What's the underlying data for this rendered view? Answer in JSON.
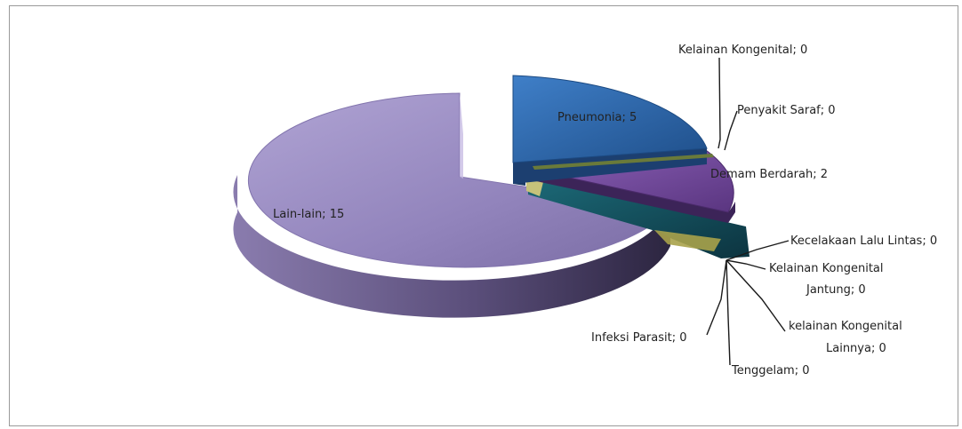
{
  "chart_data": {
    "type": "pie",
    "style": "3d-exploded",
    "title": "",
    "legend": "none",
    "labels_format": "{category}; {value}",
    "slices": [
      {
        "category": "Pneumonia",
        "value": 5,
        "color": "#2f6db3"
      },
      {
        "category": "Kelainan Kongenital",
        "value": 0,
        "color": "#4a7a2e"
      },
      {
        "category": "Penyakit Saraf",
        "value": 0,
        "color": "#8b6a2e"
      },
      {
        "category": "Demam Berdarah",
        "value": 2,
        "color": "#7a4fa3"
      },
      {
        "category": "Kecelakaan Lalu Lintas",
        "value": 0,
        "color": "#2a8aa0"
      },
      {
        "category": "Kelainan Kongenital Jantung",
        "value": 0,
        "color": "#d08a2e"
      },
      {
        "category": "kelainan Kongenital Lainnya",
        "value": 0,
        "color": "#8fa0c8"
      },
      {
        "category": "Tenggelam",
        "value": 0,
        "color": "#a04040"
      },
      {
        "category": "Infeksi Parasit",
        "value": 0,
        "color": "#8aa040"
      },
      {
        "category": "Lain-lain",
        "value": 15,
        "color": "#9b8bc0"
      }
    ],
    "display_labels": {
      "pneumonia": "Pneumonia; 5",
      "kelainan_kongenital": "Kelainan Kongenital; 0",
      "penyakit_saraf": "Penyakit Saraf; 0",
      "demam_berdarah": "Demam Berdarah; 2",
      "kecelakaan": "Kecelakaan Lalu Lintas; 0",
      "kongenital_jantung_line1": "Kelainan Kongenital",
      "kongenital_jantung_line2": "Jantung; 0",
      "kongenital_lainnya_line1": "kelainan Kongenital",
      "kongenital_lainnya_line2": "Lainnya; 0",
      "tenggelam": "Tenggelam; 0",
      "infeksi_parasit": "Infeksi Parasit; 0",
      "lain_lain": "Lain-lain; 15"
    }
  }
}
